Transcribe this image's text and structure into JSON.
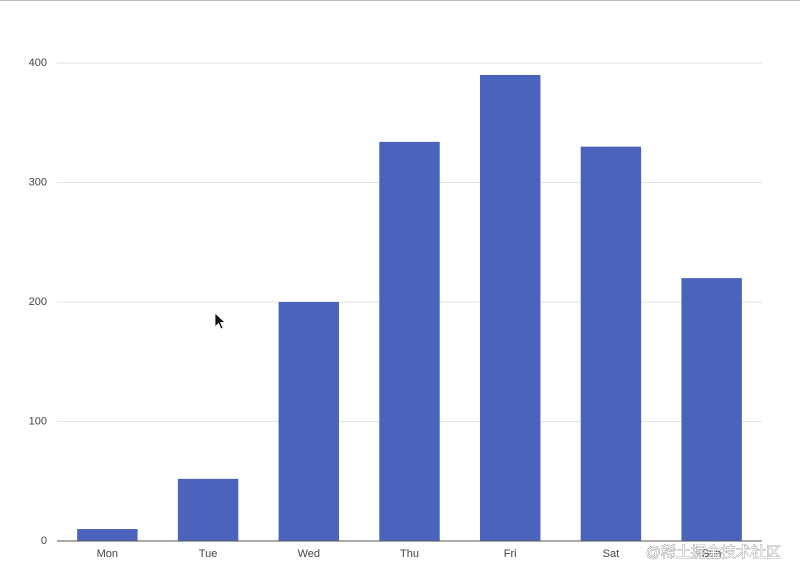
{
  "chart_data": {
    "type": "bar",
    "categories": [
      "Mon",
      "Tue",
      "Wed",
      "Thu",
      "Fri",
      "Sat",
      "Sun"
    ],
    "values": [
      10,
      52,
      200,
      334,
      390,
      330,
      220
    ],
    "color": "#4a63bd",
    "ylim": [
      0,
      400
    ],
    "yticks": [
      0,
      100,
      200,
      300,
      400
    ],
    "grid": true
  },
  "watermark": "@稀土掘金技术社区"
}
